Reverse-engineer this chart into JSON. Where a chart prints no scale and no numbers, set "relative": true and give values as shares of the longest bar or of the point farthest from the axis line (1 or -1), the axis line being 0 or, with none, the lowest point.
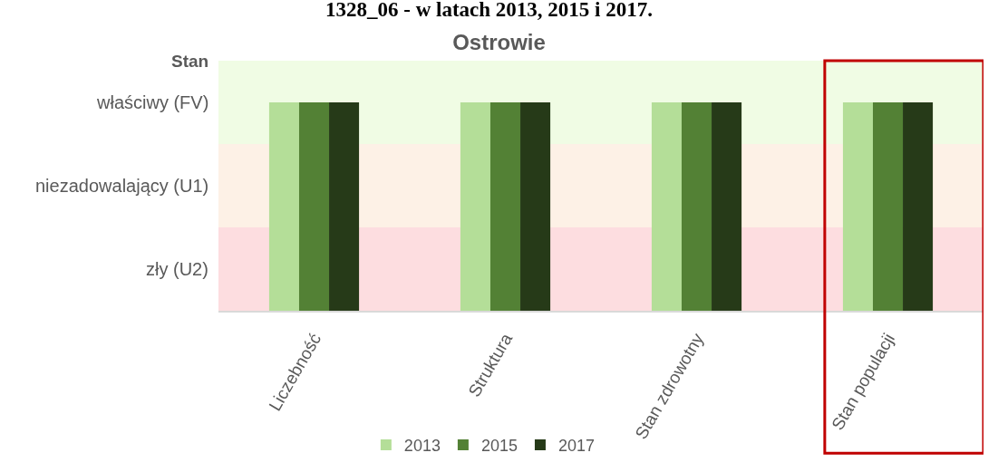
{
  "chart_data": {
    "type": "bar",
    "title": "Ostrowie",
    "ylabel": "Stan",
    "annotations": [
      "1328_06 - w latach 2013, 2015 i 2017."
    ],
    "categories": [
      "Liczebność",
      "Struktura",
      "Stan zdrowotny",
      "Stan populacji"
    ],
    "series": [
      {
        "name": "2013",
        "color": "#b4de98",
        "values": [
          1,
          1,
          1,
          1
        ]
      },
      {
        "name": "2015",
        "color": "#538135",
        "values": [
          1,
          1,
          1,
          1
        ]
      },
      {
        "name": "2017",
        "color": "#263a18",
        "values": [
          1,
          1,
          1,
          1
        ]
      }
    ],
    "relative": true,
    "bands": [
      {
        "axis": "y",
        "from": 0,
        "to": 0.4,
        "label": "zły (U2)",
        "color": "#fddde0"
      },
      {
        "axis": "y",
        "from": 0.4,
        "to": 0.8,
        "label": "niezadowalający (U1)",
        "color": "#fdf1e6"
      },
      {
        "axis": "y",
        "from": 0.8,
        "to": 1.2,
        "label": "właściwy (FV)",
        "color": "#f0fce4"
      }
    ],
    "legend": "bottom"
  }
}
